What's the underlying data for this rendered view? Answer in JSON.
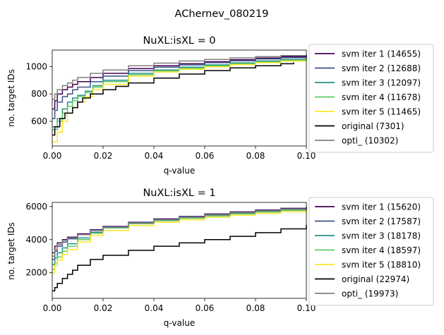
{
  "suptitle": "AChernev_080219",
  "chart_data": [
    {
      "type": "line",
      "title": "NuXL:isXL = 0",
      "xlabel": "q-value",
      "ylabel": "no. target IDs",
      "xlim": [
        0,
        0.1
      ],
      "ylim": [
        420,
        1120
      ],
      "xticks": [
        "0.00",
        "0.02",
        "0.04",
        "0.06",
        "0.08",
        "0.10"
      ],
      "yticks": [
        "600",
        "800",
        "1000"
      ],
      "ytick_values": [
        600,
        800,
        1000
      ],
      "step": true,
      "grid": false,
      "legend_position": "outside-right",
      "series": [
        {
          "name": "svm iter 1 (14655)",
          "color": "#440154",
          "x": [
            0,
            0.001,
            0.002,
            0.004,
            0.006,
            0.008,
            0.01,
            0.015,
            0.02,
            0.03,
            0.04,
            0.05,
            0.06,
            0.07,
            0.08,
            0.09,
            0.1
          ],
          "y": [
            690,
            750,
            800,
            830,
            850,
            870,
            890,
            920,
            950,
            985,
            1005,
            1020,
            1035,
            1050,
            1062,
            1072,
            1080
          ]
        },
        {
          "name": "svm iter 2 (12688)",
          "color": "#3b528b",
          "x": [
            0,
            0.001,
            0.002,
            0.004,
            0.006,
            0.008,
            0.01,
            0.015,
            0.02,
            0.03,
            0.04,
            0.05,
            0.06,
            0.07,
            0.08,
            0.09,
            0.1
          ],
          "y": [
            620,
            680,
            740,
            780,
            800,
            830,
            850,
            890,
            930,
            970,
            995,
            1012,
            1028,
            1042,
            1055,
            1065,
            1075
          ]
        },
        {
          "name": "svm iter 3 (12097)",
          "color": "#21918c",
          "x": [
            0,
            0.002,
            0.004,
            0.006,
            0.008,
            0.01,
            0.013,
            0.016,
            0.02,
            0.03,
            0.04,
            0.05,
            0.06,
            0.07,
            0.08,
            0.09,
            0.1
          ],
          "y": [
            560,
            620,
            690,
            740,
            770,
            790,
            820,
            860,
            900,
            950,
            975,
            995,
            1012,
            1027,
            1040,
            1052,
            1062
          ]
        },
        {
          "name": "svm iter 4 (11678)",
          "color": "#5ec962",
          "x": [
            0,
            0.002,
            0.004,
            0.006,
            0.008,
            0.01,
            0.013,
            0.016,
            0.02,
            0.03,
            0.04,
            0.05,
            0.06,
            0.07,
            0.08,
            0.09,
            0.1
          ],
          "y": [
            540,
            600,
            660,
            710,
            750,
            780,
            810,
            850,
            890,
            940,
            968,
            988,
            1005,
            1020,
            1034,
            1046,
            1056
          ]
        },
        {
          "name": "svm iter 5 (11465)",
          "color": "#fde725",
          "x": [
            0,
            0.002,
            0.004,
            0.006,
            0.008,
            0.01,
            0.013,
            0.016,
            0.02,
            0.03,
            0.04,
            0.05,
            0.06,
            0.07,
            0.08,
            0.09,
            0.1
          ],
          "y": [
            450,
            520,
            600,
            660,
            700,
            740,
            780,
            830,
            870,
            930,
            960,
            980,
            998,
            1014,
            1028,
            1040,
            1050
          ]
        },
        {
          "name": "original (7301)",
          "color": "#000000",
          "x": [
            0,
            0.001,
            0.003,
            0.005,
            0.008,
            0.01,
            0.012,
            0.015,
            0.02,
            0.025,
            0.03,
            0.04,
            0.05,
            0.06,
            0.07,
            0.08,
            0.09,
            0.095
          ],
          "y": [
            500,
            560,
            620,
            660,
            700,
            740,
            770,
            800,
            830,
            855,
            880,
            915,
            945,
            970,
            990,
            1005,
            1020,
            1030
          ]
        },
        {
          "name": "opti_ (10302)",
          "color": "#808080",
          "x": [
            0,
            0.001,
            0.002,
            0.004,
            0.006,
            0.008,
            0.01,
            0.015,
            0.02,
            0.03,
            0.04,
            0.05,
            0.06,
            0.07,
            0.08,
            0.09,
            0.1
          ],
          "y": [
            760,
            800,
            830,
            860,
            880,
            900,
            920,
            950,
            975,
            1005,
            1025,
            1040,
            1052,
            1063,
            1072,
            1080,
            1088
          ]
        }
      ]
    },
    {
      "type": "line",
      "title": "NuXL:isXL = 1",
      "xlabel": "q-value",
      "ylabel": "no. target IDs",
      "xlim": [
        0,
        0.1
      ],
      "ylim": [
        450,
        6250
      ],
      "xticks": [
        "0.00",
        "0.02",
        "0.04",
        "0.06",
        "0.08",
        "0.10"
      ],
      "yticks": [
        "2000",
        "4000",
        "6000"
      ],
      "ytick_values": [
        2000,
        4000,
        6000
      ],
      "step": true,
      "grid": false,
      "legend_position": "outside-right",
      "series": [
        {
          "name": "svm iter 1 (15620)",
          "color": "#440154",
          "x": [
            0,
            0.001,
            0.002,
            0.004,
            0.006,
            0.01,
            0.015,
            0.02,
            0.03,
            0.04,
            0.05,
            0.06,
            0.07,
            0.08,
            0.09,
            0.1
          ],
          "y": [
            3200,
            3600,
            3800,
            4000,
            4150,
            4350,
            4600,
            4800,
            5050,
            5250,
            5400,
            5550,
            5680,
            5790,
            5890,
            5980
          ]
        },
        {
          "name": "svm iter 2 (17587)",
          "color": "#3b528b",
          "x": [
            0,
            0.001,
            0.002,
            0.004,
            0.006,
            0.01,
            0.015,
            0.02,
            0.03,
            0.04,
            0.05,
            0.06,
            0.07,
            0.08,
            0.09,
            0.1
          ],
          "y": [
            2800,
            3300,
            3600,
            3850,
            4050,
            4300,
            4560,
            4780,
            5030,
            5220,
            5380,
            5520,
            5650,
            5760,
            5860,
            5950
          ]
        },
        {
          "name": "svm iter 3 (18178)",
          "color": "#21918c",
          "x": [
            0,
            0.001,
            0.002,
            0.004,
            0.006,
            0.01,
            0.015,
            0.02,
            0.03,
            0.04,
            0.05,
            0.06,
            0.07,
            0.08,
            0.09,
            0.1
          ],
          "y": [
            2500,
            2900,
            3200,
            3500,
            3750,
            4100,
            4450,
            4750,
            5000,
            5180,
            5330,
            5470,
            5600,
            5710,
            5810,
            5900
          ]
        },
        {
          "name": "svm iter 4 (18597)",
          "color": "#5ec962",
          "x": [
            0,
            0.001,
            0.002,
            0.004,
            0.006,
            0.01,
            0.015,
            0.02,
            0.03,
            0.04,
            0.05,
            0.06,
            0.07,
            0.08,
            0.09,
            0.1
          ],
          "y": [
            2200,
            2600,
            2950,
            3300,
            3600,
            4000,
            4380,
            4700,
            4960,
            5140,
            5290,
            5430,
            5560,
            5670,
            5770,
            5860
          ]
        },
        {
          "name": "svm iter 5 (18810)",
          "color": "#fde725",
          "x": [
            0,
            0.001,
            0.002,
            0.004,
            0.006,
            0.01,
            0.015,
            0.02,
            0.03,
            0.04,
            0.05,
            0.06,
            0.07,
            0.08,
            0.09,
            0.1
          ],
          "y": [
            2000,
            2400,
            2750,
            3100,
            3400,
            3850,
            4250,
            4550,
            4850,
            5050,
            5200,
            5350,
            5480,
            5590,
            5690,
            5780
          ]
        },
        {
          "name": "original (22974)",
          "color": "#000000",
          "x": [
            0,
            0.001,
            0.002,
            0.004,
            0.006,
            0.008,
            0.01,
            0.015,
            0.02,
            0.03,
            0.04,
            0.05,
            0.06,
            0.07,
            0.08,
            0.09,
            0.1
          ],
          "y": [
            900,
            1100,
            1350,
            1650,
            1900,
            2150,
            2450,
            2800,
            3050,
            3350,
            3600,
            3800,
            4000,
            4200,
            4420,
            4650,
            4900
          ]
        },
        {
          "name": "opti_ (19973)",
          "color": "#808080",
          "x": [
            0,
            0.001,
            0.002,
            0.004,
            0.006,
            0.01,
            0.015,
            0.02,
            0.03,
            0.04,
            0.05,
            0.06,
            0.07,
            0.08,
            0.09,
            0.1
          ],
          "y": [
            3000,
            3400,
            3700,
            3950,
            4100,
            4300,
            4550,
            4750,
            5000,
            5200,
            5350,
            5500,
            5630,
            5740,
            5840,
            5920
          ]
        }
      ]
    }
  ]
}
